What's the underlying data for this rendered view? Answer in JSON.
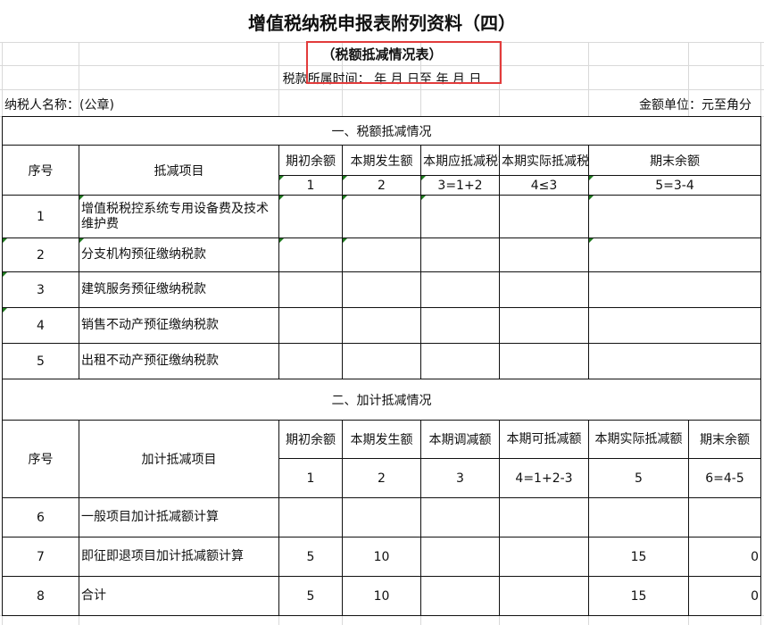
{
  "title": "增值税纳税申报表附列资料（四）",
  "subtitle": "（税额抵减情况表）",
  "period": "税款所属时间：  年  月  日至  年  月  日",
  "taxpayer_label": "纳税人名称：(公章)",
  "unit_label": "金额单位：元至角分",
  "highlight_color": "#e23b3b",
  "section1": {
    "title": "一、税额抵减情况",
    "headers": [
      "序号",
      "抵减项目",
      "期初余额",
      "本期发生额",
      "本期应抵减税额",
      "本期实际抵减税额",
      "期末余额"
    ],
    "numbers": [
      "1",
      "2",
      "3=1+2",
      "4≤3",
      "5=3-4"
    ],
    "rows": [
      {
        "no": "1",
        "item": "增值税税控系统专用设备费及技术维护费"
      },
      {
        "no": "2",
        "item": "分支机构预征缴纳税款"
      },
      {
        "no": "3",
        "item": "建筑服务预征缴纳税款"
      },
      {
        "no": "4",
        "item": "销售不动产预征缴纳税款"
      },
      {
        "no": "5",
        "item": "出租不动产预征缴纳税款"
      }
    ]
  },
  "section2": {
    "title": "二、加计抵减情况",
    "headers": [
      "序号",
      "加计抵减项目",
      "期初余额",
      "本期发生额",
      "本期调减额",
      "本期可抵减额",
      "本期实际抵减额",
      "期末余额"
    ],
    "numbers": [
      "1",
      "2",
      "3",
      "4=1+2-3",
      "5",
      "6=4-5"
    ],
    "rows": [
      {
        "no": "6",
        "item": "一般项目加计抵减额计算",
        "v": [
          "",
          "",
          "",
          "",
          "",
          ""
        ]
      },
      {
        "no": "7",
        "item": "即征即退项目加计抵减额计算",
        "v": [
          "5",
          "10",
          "",
          "",
          "15",
          "0"
        ]
      },
      {
        "no": "8",
        "item": "合计",
        "v": [
          "5",
          "10",
          "",
          "",
          "15",
          "0"
        ]
      }
    ]
  }
}
